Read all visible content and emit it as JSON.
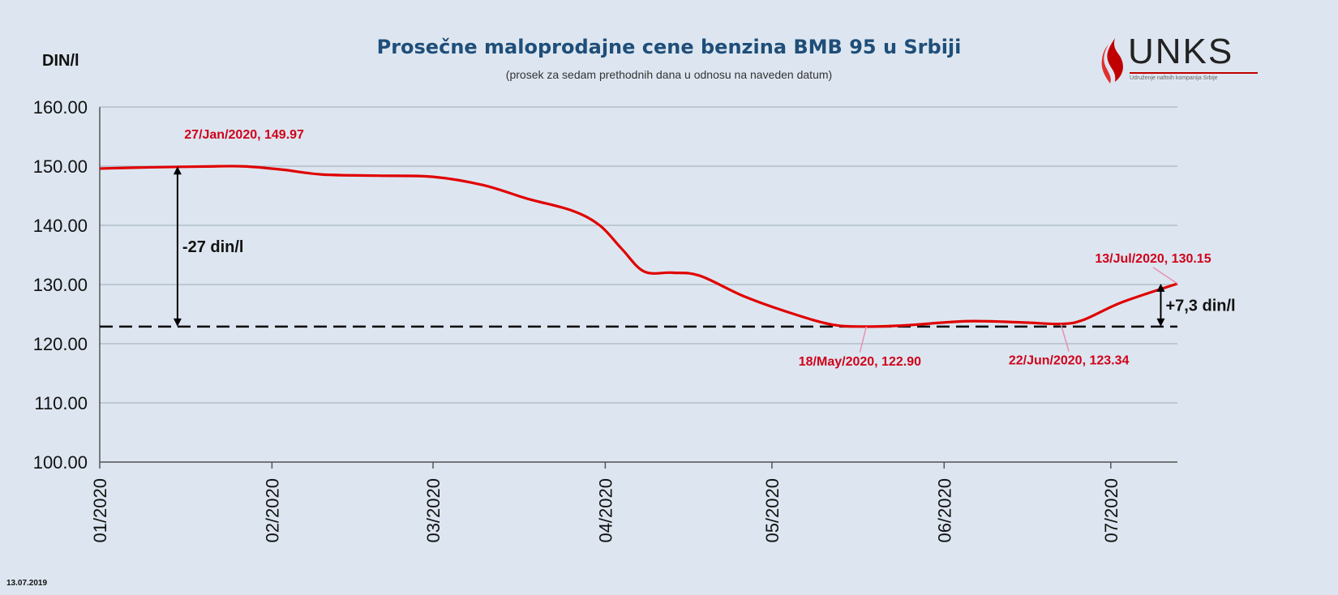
{
  "chart_data": {
    "type": "line",
    "title": "Prosečne maloprodajne cene benzina BMB 95 u Srbiji",
    "subtitle": "(prosek za sedam prethodnih dana u odnosu na naveden datum)",
    "ylabel": "DIN/l",
    "ylim": [
      100,
      160
    ],
    "yticks": [
      100,
      110,
      120,
      130,
      140,
      150,
      160
    ],
    "ytick_labels": [
      "100.00",
      "110.00",
      "120.00",
      "130.00",
      "140.00",
      "150.00",
      "160.00"
    ],
    "x_range": [
      "2020-01-01",
      "2020-07-13"
    ],
    "xticks": [
      "2020-01-01",
      "2020-02-01",
      "2020-03-01",
      "2020-04-01",
      "2020-05-01",
      "2020-06-01",
      "2020-07-01"
    ],
    "xtick_labels": [
      "01/2020",
      "02/2020",
      "03/2020",
      "04/2020",
      "05/2020",
      "06/2020",
      "07/2020"
    ],
    "grid": "horizontal",
    "series": [
      {
        "color": "#e00000",
        "points": [
          {
            "x": "2020-01-01",
            "y": 149.6
          },
          {
            "x": "2020-01-10",
            "y": 149.8
          },
          {
            "x": "2020-01-20",
            "y": 149.95
          },
          {
            "x": "2020-01-27",
            "y": 149.97
          },
          {
            "x": "2020-02-03",
            "y": 149.4
          },
          {
            "x": "2020-02-10",
            "y": 148.6
          },
          {
            "x": "2020-02-20",
            "y": 148.4
          },
          {
            "x": "2020-03-01",
            "y": 148.2
          },
          {
            "x": "2020-03-10",
            "y": 146.8
          },
          {
            "x": "2020-03-18",
            "y": 144.5
          },
          {
            "x": "2020-03-26",
            "y": 142.5
          },
          {
            "x": "2020-03-31",
            "y": 140.0
          },
          {
            "x": "2020-04-04",
            "y": 136.0
          },
          {
            "x": "2020-04-08",
            "y": 132.2
          },
          {
            "x": "2020-04-13",
            "y": 132.0
          },
          {
            "x": "2020-04-18",
            "y": 131.5
          },
          {
            "x": "2020-04-26",
            "y": 128.0
          },
          {
            "x": "2020-05-05",
            "y": 125.0
          },
          {
            "x": "2020-05-12",
            "y": 123.2
          },
          {
            "x": "2020-05-18",
            "y": 122.9
          },
          {
            "x": "2020-05-25",
            "y": 123.1
          },
          {
            "x": "2020-06-05",
            "y": 123.8
          },
          {
            "x": "2020-06-15",
            "y": 123.6
          },
          {
            "x": "2020-06-22",
            "y": 123.34
          },
          {
            "x": "2020-06-26",
            "y": 124.0
          },
          {
            "x": "2020-07-03",
            "y": 127.0
          },
          {
            "x": "2020-07-13",
            "y": 130.15
          }
        ]
      }
    ],
    "reference_line": {
      "y": 122.9,
      "style": "dashed",
      "color": "#000000"
    },
    "annotations": [
      {
        "x": "2020-01-27",
        "y": 149.97,
        "text": "27/Jan/2020, 149.97"
      },
      {
        "x": "2020-05-18",
        "y": 122.9,
        "text": "18/May/2020, 122.90"
      },
      {
        "x": "2020-06-22",
        "y": 123.34,
        "text": "22/Jun/2020, 123.34"
      },
      {
        "x": "2020-07-13",
        "y": 130.15,
        "text": "13/Jul/2020, 130.15"
      }
    ],
    "differences": [
      {
        "x": "2020-01-15",
        "from": 149.97,
        "to": 122.9,
        "text": "-27 din/l"
      },
      {
        "x": "2020-07-10",
        "from": 130.15,
        "to": 122.9,
        "text": "+7,3 din/l"
      }
    ]
  },
  "footer": {
    "date": "13.07.2019"
  },
  "logo": {
    "text": "UNKS",
    "tagline": "Udruženje naftnih kompanija Srbije"
  }
}
